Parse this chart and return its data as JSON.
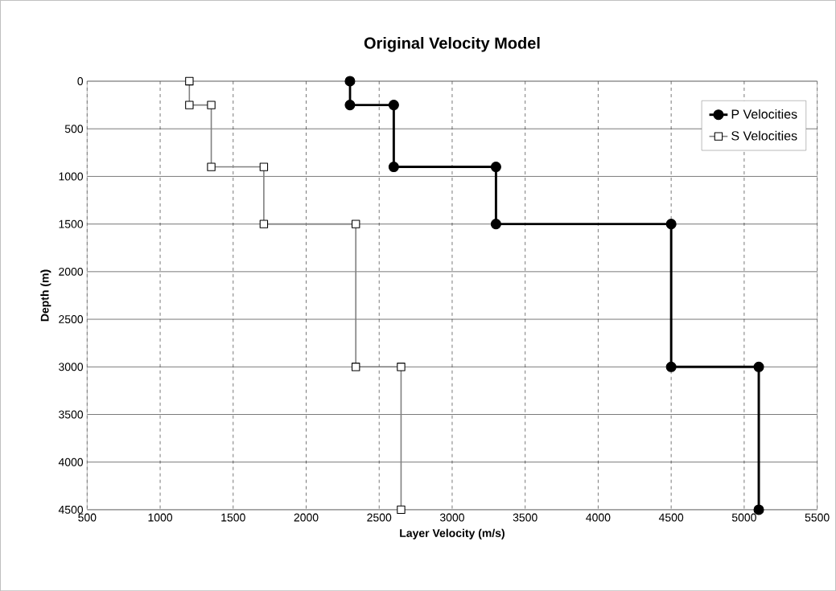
{
  "chart_data": {
    "type": "line",
    "title": "Original Velocity Model",
    "xlabel": "Layer Velocity (m/s)",
    "ylabel": "Depth (m)",
    "xlim": [
      500,
      5500
    ],
    "xticks": [
      500,
      1000,
      1500,
      2000,
      2500,
      3000,
      3500,
      4000,
      4500,
      5000,
      5500
    ],
    "ylim": [
      4500,
      0
    ],
    "yticks": [
      0,
      500,
      1000,
      1500,
      2000,
      2500,
      3000,
      3500,
      4000,
      4500
    ],
    "grid": true,
    "legend": "top right",
    "line_style": "solid",
    "series": [
      {
        "name": "P Velocities",
        "color": "#000000",
        "marker": "circle",
        "x": [
          2300,
          2300,
          2600,
          2600,
          3300,
          3300,
          4500,
          4500,
          5100,
          5100
        ],
        "values": [
          0,
          250,
          250,
          900,
          900,
          1500,
          1500,
          3000,
          3000,
          4500
        ]
      },
      {
        "name": "S Velocities",
        "color": "#808080",
        "marker": "square",
        "x": [
          1200,
          1200,
          1350,
          1350,
          1710,
          1710,
          2340,
          2340,
          2650,
          2650
        ],
        "values": [
          0,
          250,
          250,
          900,
          900,
          1500,
          1500,
          3000,
          3000,
          4500
        ]
      }
    ]
  }
}
